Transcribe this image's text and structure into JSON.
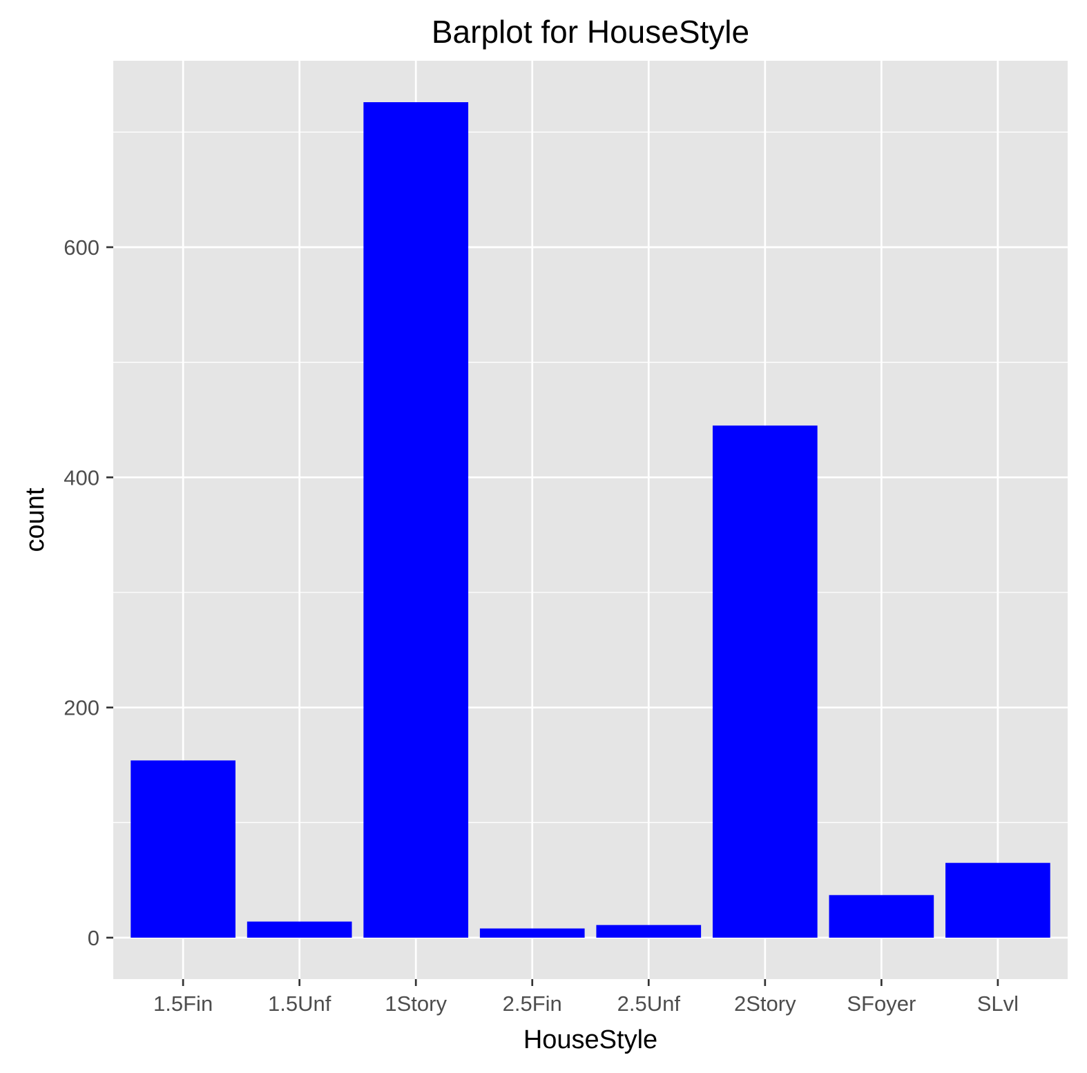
{
  "chart_data": {
    "type": "bar",
    "title": "Barplot for HouseStyle",
    "xlabel": "HouseStyle",
    "ylabel": "count",
    "categories": [
      "1.5Fin",
      "1.5Unf",
      "1Story",
      "2.5Fin",
      "2.5Unf",
      "2Story",
      "SFoyer",
      "SLvl"
    ],
    "values": [
      154,
      14,
      726,
      8,
      11,
      445,
      37,
      65
    ],
    "ylim": [
      -36,
      762
    ],
    "yticks": [
      0,
      200,
      400,
      600
    ],
    "yticks_labels": [
      "0",
      "200",
      "400",
      "600"
    ],
    "grid": true,
    "bar_color": "#0000ff",
    "panel_color": "#e5e5e5",
    "grid_color": "#ffffff"
  }
}
